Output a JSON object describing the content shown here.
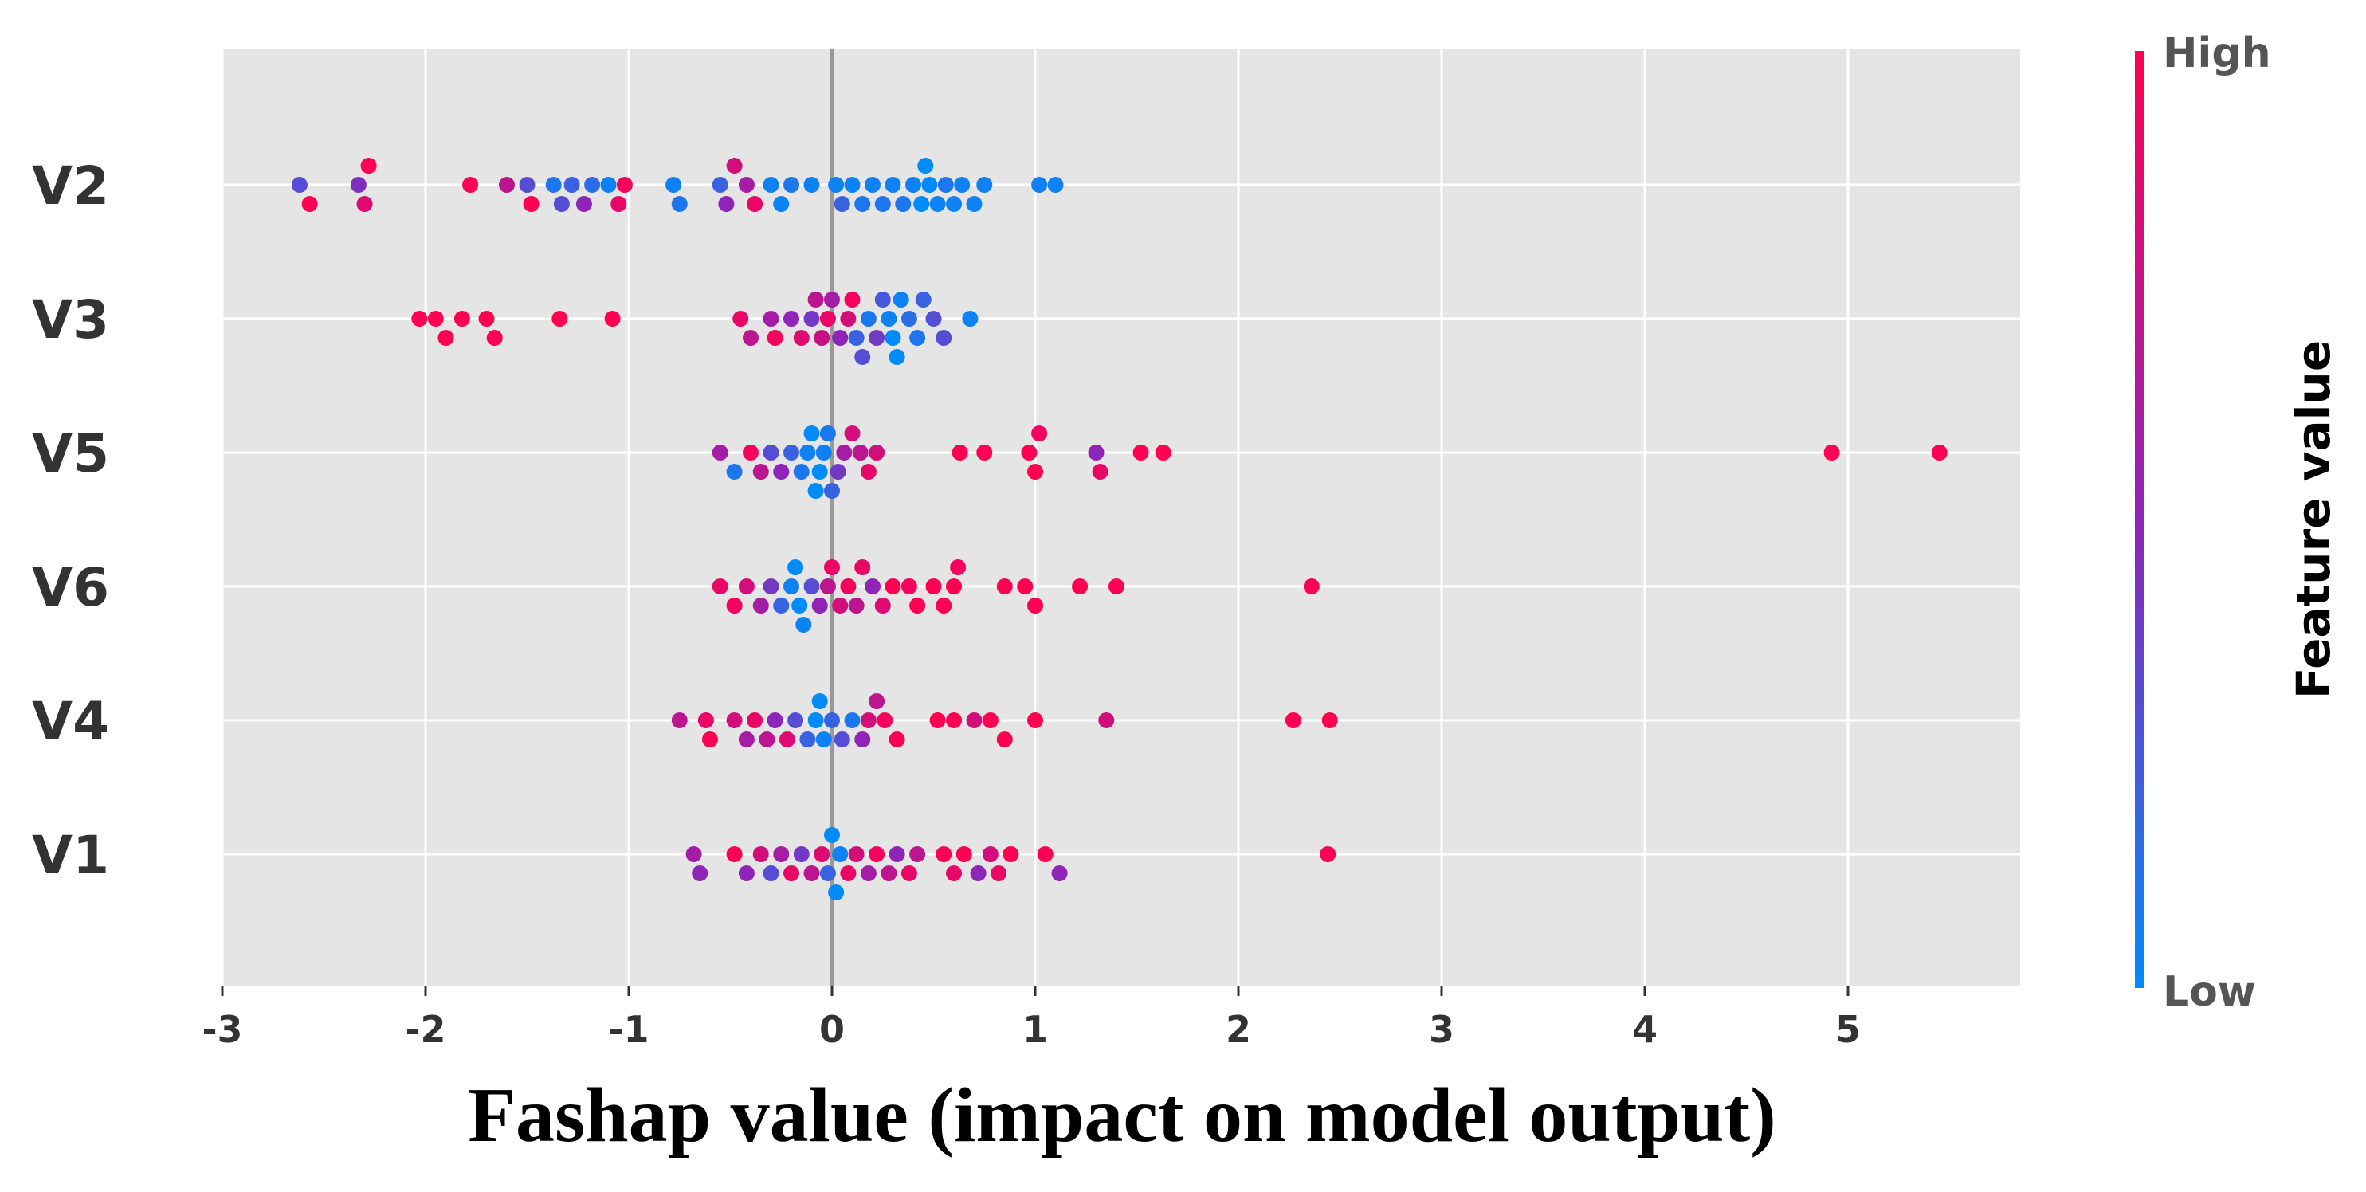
{
  "chart_data": {
    "type": "scatter",
    "subtype": "shap-beeswarm",
    "xlabel": "Fashap value (impact on model output)",
    "xlim": [
      -3.05,
      5.85
    ],
    "xticks": [
      -3,
      -2,
      -1,
      0,
      1,
      2,
      3,
      4,
      5
    ],
    "xtick_labels": [
      "-3",
      "-2",
      "-1",
      "0",
      "1",
      "2",
      "3",
      "4",
      "5"
    ],
    "grid": true,
    "zero_line": true,
    "colormap": {
      "title": "Feature value",
      "high_label": "High",
      "low_label": "Low",
      "high_color": "#ff0052",
      "mid_color": "#8e24b8",
      "low_color": "#008bfb"
    },
    "features": [
      {
        "name": "V2",
        "points": [
          [
            -2.62,
            0.3
          ],
          [
            -2.57,
            1.0
          ],
          [
            -2.33,
            0.45
          ],
          [
            -2.3,
            0.85
          ],
          [
            -2.28,
            1.0
          ],
          [
            -1.78,
            1.0
          ],
          [
            -1.6,
            0.7
          ],
          [
            -1.5,
            0.3
          ],
          [
            -1.48,
            1.0
          ],
          [
            -1.37,
            0.1
          ],
          [
            -1.33,
            0.3
          ],
          [
            -1.28,
            0.2
          ],
          [
            -1.22,
            0.5
          ],
          [
            -1.18,
            0.15
          ],
          [
            -1.1,
            0.05
          ],
          [
            -1.05,
            0.9
          ],
          [
            -1.02,
            0.95
          ],
          [
            -0.78,
            0.05
          ],
          [
            -0.75,
            0.1
          ],
          [
            -0.55,
            0.2
          ],
          [
            -0.52,
            0.5
          ],
          [
            -0.48,
            0.8
          ],
          [
            -0.42,
            0.6
          ],
          [
            -0.38,
            0.9
          ],
          [
            -0.3,
            0.05
          ],
          [
            -0.25,
            0.05
          ],
          [
            -0.2,
            0.1
          ],
          [
            -0.1,
            0.05
          ],
          [
            0.02,
            0.05
          ],
          [
            0.05,
            0.2
          ],
          [
            0.1,
            0.05
          ],
          [
            0.15,
            0.1
          ],
          [
            0.2,
            0.05
          ],
          [
            0.25,
            0.1
          ],
          [
            0.3,
            0.05
          ],
          [
            0.35,
            0.1
          ],
          [
            0.4,
            0.05
          ],
          [
            0.44,
            0.0
          ],
          [
            0.46,
            0.0
          ],
          [
            0.48,
            0.0
          ],
          [
            0.52,
            0.05
          ],
          [
            0.56,
            0.1
          ],
          [
            0.6,
            0.05
          ],
          [
            0.64,
            0.05
          ],
          [
            0.7,
            0.05
          ],
          [
            0.75,
            0.05
          ],
          [
            1.02,
            0.05
          ],
          [
            1.1,
            0.05
          ]
        ]
      },
      {
        "name": "V3",
        "points": [
          [
            -2.03,
            1.0
          ],
          [
            -1.95,
            1.0
          ],
          [
            -1.9,
            1.0
          ],
          [
            -1.82,
            1.0
          ],
          [
            -1.7,
            1.0
          ],
          [
            -1.66,
            1.0
          ],
          [
            -1.34,
            1.0
          ],
          [
            -1.08,
            1.0
          ],
          [
            -0.45,
            0.9
          ],
          [
            -0.4,
            0.7
          ],
          [
            -0.3,
            0.6
          ],
          [
            -0.28,
            0.95
          ],
          [
            -0.2,
            0.5
          ],
          [
            -0.15,
            0.85
          ],
          [
            -0.1,
            0.4
          ],
          [
            -0.08,
            0.7
          ],
          [
            -0.05,
            0.75
          ],
          [
            -0.02,
            0.9
          ],
          [
            0.0,
            0.6
          ],
          [
            0.04,
            0.5
          ],
          [
            0.08,
            0.8
          ],
          [
            0.1,
            0.95
          ],
          [
            0.12,
            0.2
          ],
          [
            0.15,
            0.3
          ],
          [
            0.18,
            0.1
          ],
          [
            0.22,
            0.4
          ],
          [
            0.25,
            0.25
          ],
          [
            0.28,
            0.05
          ],
          [
            0.3,
            0.0
          ],
          [
            0.32,
            0.0
          ],
          [
            0.34,
            0.05
          ],
          [
            0.38,
            0.15
          ],
          [
            0.42,
            0.1
          ],
          [
            0.45,
            0.2
          ],
          [
            0.5,
            0.3
          ],
          [
            0.55,
            0.3
          ],
          [
            0.68,
            0.05
          ]
        ]
      },
      {
        "name": "V5",
        "points": [
          [
            -0.55,
            0.6
          ],
          [
            -0.48,
            0.1
          ],
          [
            -0.4,
            0.95
          ],
          [
            -0.35,
            0.7
          ],
          [
            -0.3,
            0.3
          ],
          [
            -0.25,
            0.5
          ],
          [
            -0.2,
            0.2
          ],
          [
            -0.15,
            0.1
          ],
          [
            -0.12,
            0.05
          ],
          [
            -0.1,
            0.0
          ],
          [
            -0.08,
            0.0
          ],
          [
            -0.06,
            0.0
          ],
          [
            -0.04,
            0.05
          ],
          [
            -0.02,
            0.1
          ],
          [
            0.0,
            0.2
          ],
          [
            0.03,
            0.4
          ],
          [
            0.06,
            0.6
          ],
          [
            0.1,
            0.8
          ],
          [
            0.14,
            0.7
          ],
          [
            0.18,
            0.9
          ],
          [
            0.22,
            0.8
          ],
          [
            0.63,
            1.0
          ],
          [
            0.75,
            1.0
          ],
          [
            0.97,
            1.0
          ],
          [
            1.0,
            1.0
          ],
          [
            1.02,
            0.95
          ],
          [
            1.3,
            0.5
          ],
          [
            1.32,
            0.9
          ],
          [
            1.52,
            1.0
          ],
          [
            1.63,
            1.0
          ],
          [
            4.92,
            1.0
          ],
          [
            5.45,
            1.0
          ]
        ]
      },
      {
        "name": "V6",
        "points": [
          [
            -0.55,
            0.9
          ],
          [
            -0.48,
            0.95
          ],
          [
            -0.42,
            0.8
          ],
          [
            -0.35,
            0.6
          ],
          [
            -0.3,
            0.4
          ],
          [
            -0.25,
            0.2
          ],
          [
            -0.2,
            0.05
          ],
          [
            -0.18,
            0.0
          ],
          [
            -0.16,
            0.0
          ],
          [
            -0.14,
            0.05
          ],
          [
            -0.1,
            0.3
          ],
          [
            -0.06,
            0.5
          ],
          [
            -0.02,
            0.7
          ],
          [
            0.0,
            0.9
          ],
          [
            0.04,
            0.8
          ],
          [
            0.08,
            0.95
          ],
          [
            0.12,
            0.7
          ],
          [
            0.15,
            0.9
          ],
          [
            0.2,
            0.5
          ],
          [
            0.25,
            0.85
          ],
          [
            0.3,
            1.0
          ],
          [
            0.38,
            0.95
          ],
          [
            0.42,
            1.0
          ],
          [
            0.5,
            1.0
          ],
          [
            0.55,
            1.0
          ],
          [
            0.6,
            1.0
          ],
          [
            0.62,
            0.95
          ],
          [
            0.85,
            1.0
          ],
          [
            0.95,
            1.0
          ],
          [
            1.0,
            1.0
          ],
          [
            1.22,
            1.0
          ],
          [
            1.4,
            1.0
          ],
          [
            2.36,
            1.0
          ]
        ]
      },
      {
        "name": "V4",
        "points": [
          [
            -0.75,
            0.7
          ],
          [
            -0.62,
            0.9
          ],
          [
            -0.6,
            1.0
          ],
          [
            -0.48,
            0.8
          ],
          [
            -0.42,
            0.6
          ],
          [
            -0.38,
            0.9
          ],
          [
            -0.32,
            0.7
          ],
          [
            -0.28,
            0.5
          ],
          [
            -0.22,
            0.85
          ],
          [
            -0.18,
            0.3
          ],
          [
            -0.12,
            0.2
          ],
          [
            -0.08,
            0.0
          ],
          [
            -0.06,
            0.0
          ],
          [
            -0.04,
            0.05
          ],
          [
            0.0,
            0.2
          ],
          [
            0.05,
            0.3
          ],
          [
            0.1,
            0.1
          ],
          [
            0.15,
            0.5
          ],
          [
            0.18,
            0.8
          ],
          [
            0.22,
            0.7
          ],
          [
            0.26,
            0.95
          ],
          [
            0.32,
            1.0
          ],
          [
            0.52,
            1.0
          ],
          [
            0.6,
            1.0
          ],
          [
            0.7,
            0.8
          ],
          [
            0.78,
            1.0
          ],
          [
            0.85,
            1.0
          ],
          [
            1.0,
            1.0
          ],
          [
            1.35,
            0.8
          ],
          [
            2.27,
            1.0
          ],
          [
            2.45,
            1.0
          ]
        ]
      },
      {
        "name": "V1",
        "points": [
          [
            -0.68,
            0.6
          ],
          [
            -0.65,
            0.5
          ],
          [
            -0.48,
            1.0
          ],
          [
            -0.42,
            0.5
          ],
          [
            -0.35,
            0.8
          ],
          [
            -0.3,
            0.3
          ],
          [
            -0.25,
            0.6
          ],
          [
            -0.2,
            0.9
          ],
          [
            -0.15,
            0.4
          ],
          [
            -0.1,
            0.7
          ],
          [
            -0.05,
            0.85
          ],
          [
            -0.02,
            0.2
          ],
          [
            0.0,
            0.0
          ],
          [
            0.02,
            0.0
          ],
          [
            0.04,
            0.05
          ],
          [
            0.08,
            0.9
          ],
          [
            0.12,
            0.8
          ],
          [
            0.18,
            0.6
          ],
          [
            0.22,
            0.95
          ],
          [
            0.28,
            0.7
          ],
          [
            0.32,
            0.5
          ],
          [
            0.38,
            0.9
          ],
          [
            0.42,
            0.7
          ],
          [
            0.55,
            1.0
          ],
          [
            0.6,
            0.9
          ],
          [
            0.65,
            1.0
          ],
          [
            0.72,
            0.5
          ],
          [
            0.78,
            0.8
          ],
          [
            0.82,
            0.9
          ],
          [
            0.88,
            1.0
          ],
          [
            1.05,
            1.0
          ],
          [
            1.12,
            0.5
          ],
          [
            2.44,
            1.0
          ]
        ]
      }
    ]
  }
}
